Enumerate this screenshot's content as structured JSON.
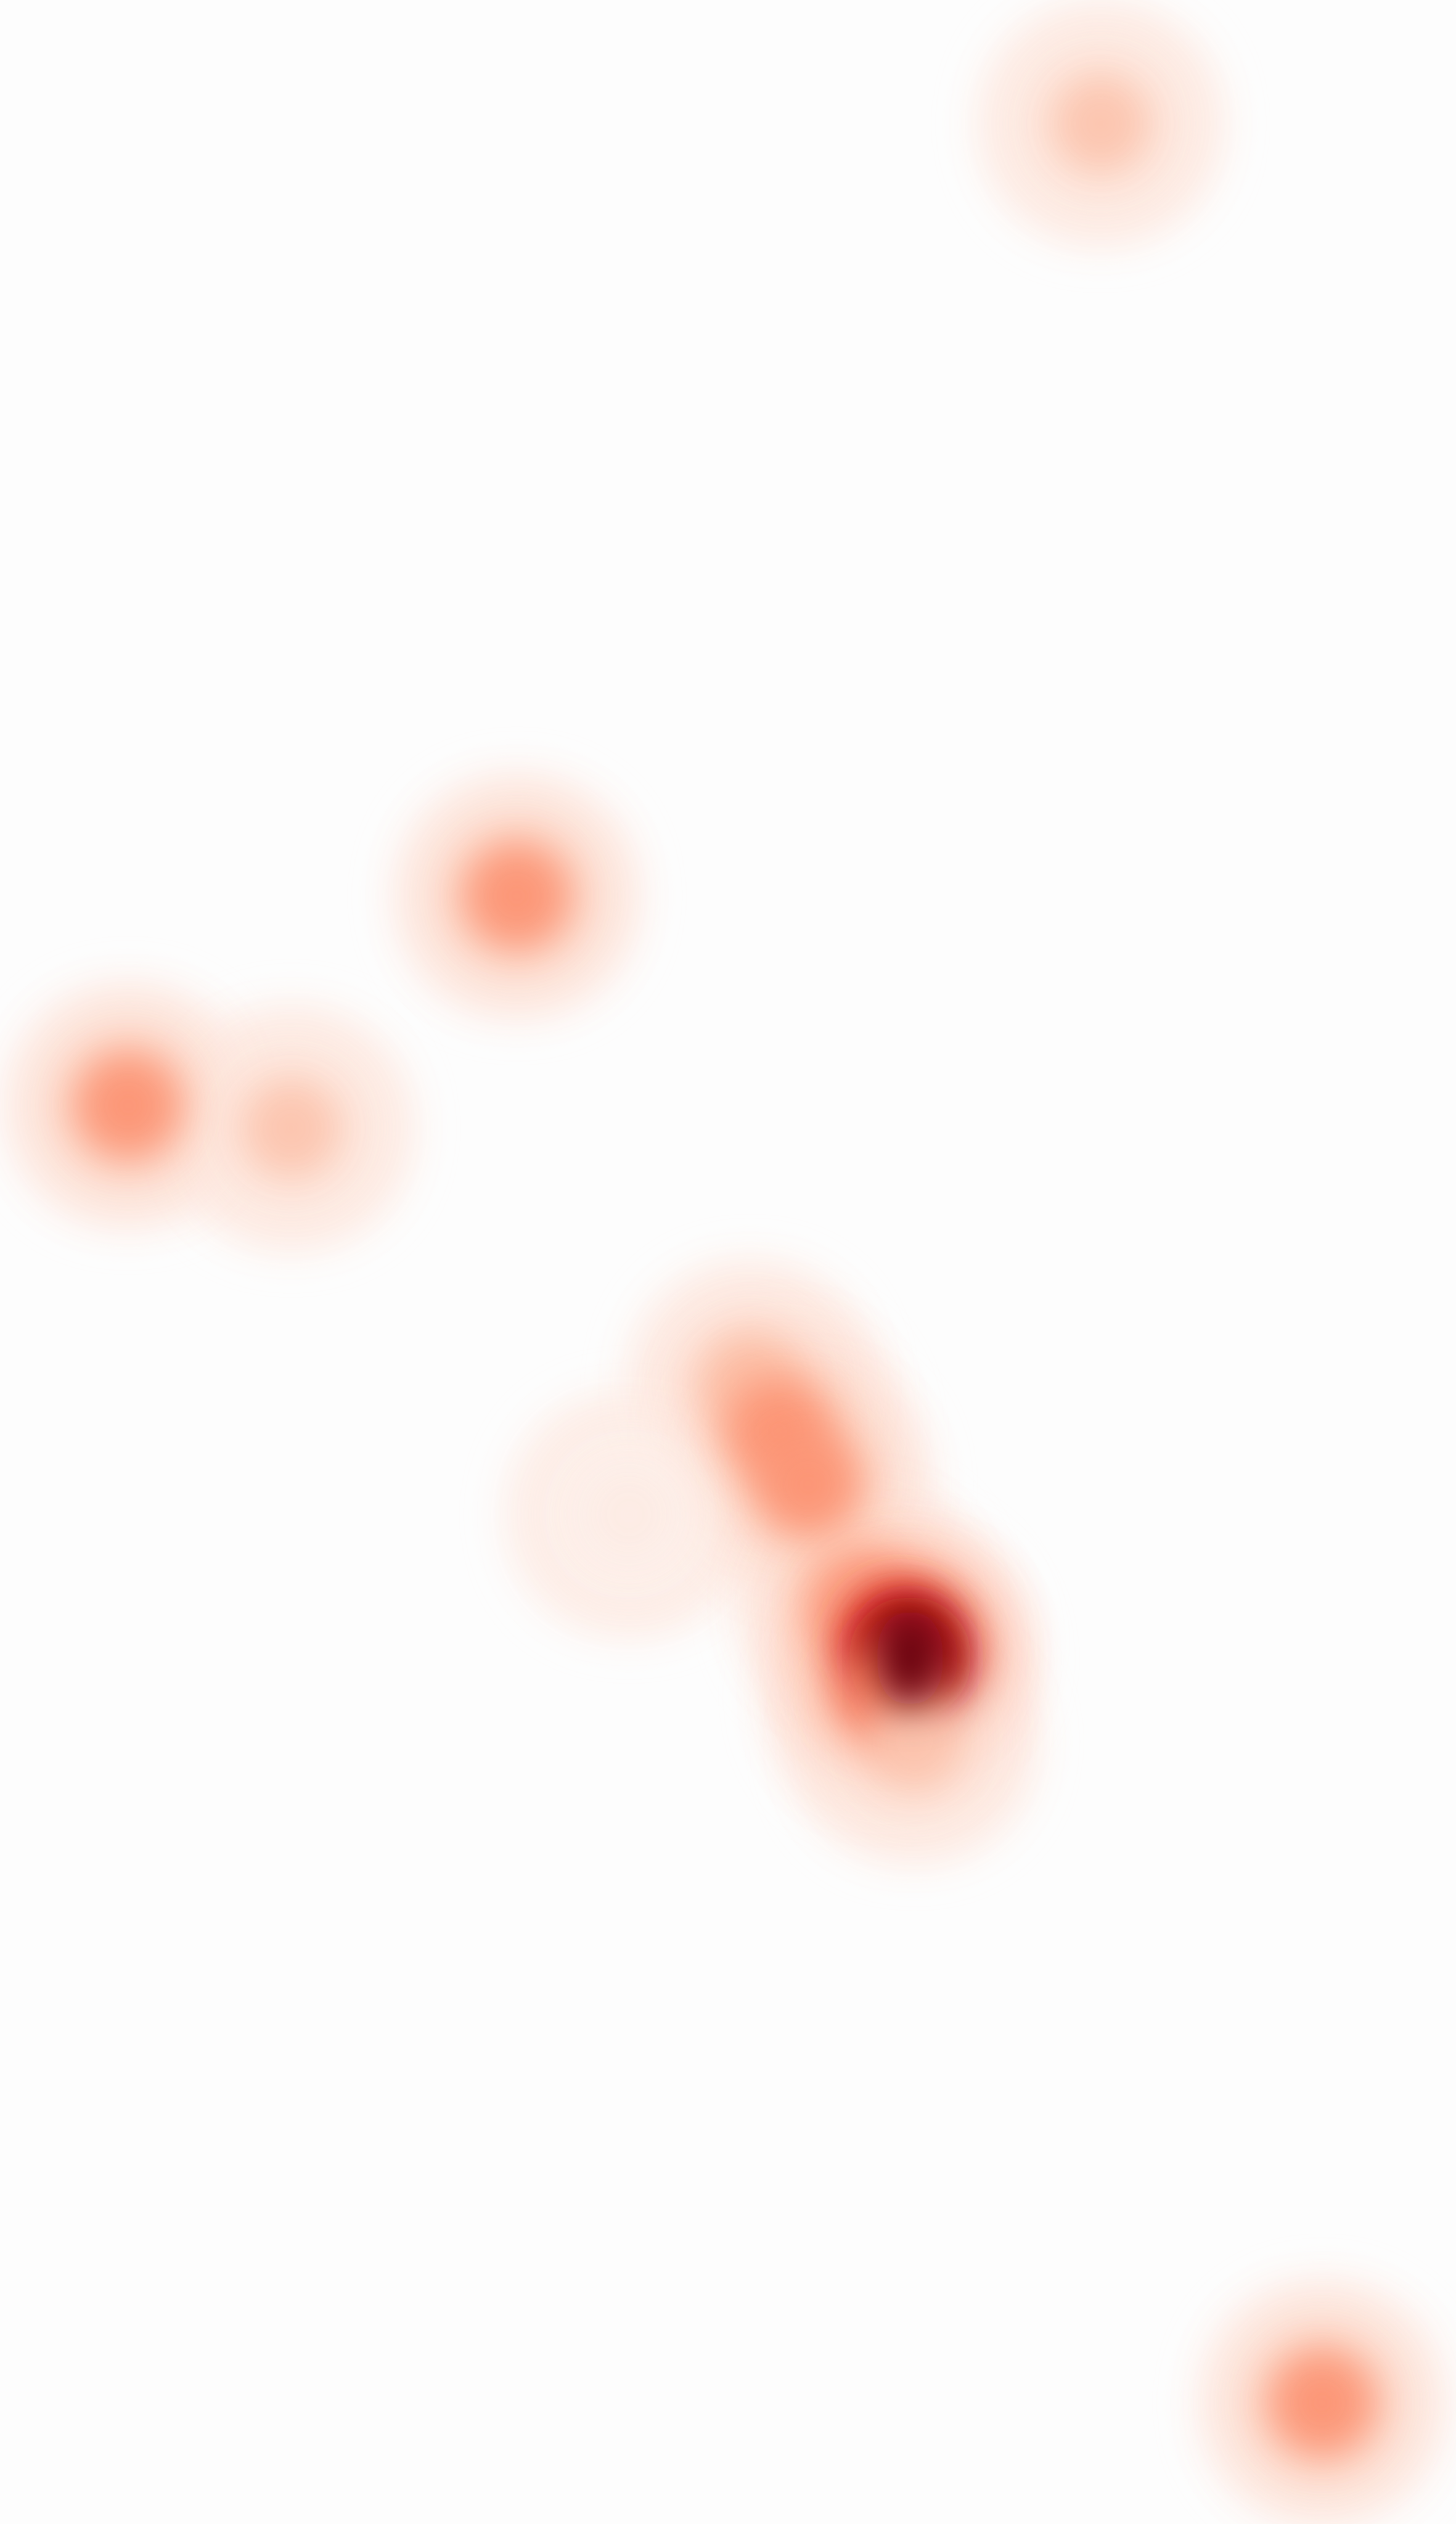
{
  "chart_data": {
    "type": "heatmap",
    "title": "",
    "xlabel": "",
    "ylabel": "",
    "grid": false,
    "legend": "none",
    "colormap": [
      "#fdfdfd",
      "#fde6dc",
      "#fcbba1",
      "#fc8a6a",
      "#ef3b2c",
      "#b30f1a",
      "#67000d"
    ],
    "points": [
      {
        "x": 0.756,
        "y": 0.049,
        "intensity": 0.35
      },
      {
        "x": 0.355,
        "y": 0.355,
        "intensity": 0.55
      },
      {
        "x": 0.088,
        "y": 0.438,
        "intensity": 0.55
      },
      {
        "x": 0.2,
        "y": 0.447,
        "intensity": 0.35
      },
      {
        "x": 0.515,
        "y": 0.548,
        "intensity": 0.38
      },
      {
        "x": 0.535,
        "y": 0.567,
        "intensity": 0.55
      },
      {
        "x": 0.555,
        "y": 0.588,
        "intensity": 0.55
      },
      {
        "x": 0.432,
        "y": 0.6,
        "intensity": 0.15
      },
      {
        "x": 0.59,
        "y": 0.635,
        "intensity": 0.5
      },
      {
        "x": 0.618,
        "y": 0.65,
        "intensity": 0.8
      },
      {
        "x": 0.625,
        "y": 0.657,
        "intensity": 1.0
      },
      {
        "x": 0.61,
        "y": 0.672,
        "intensity": 0.6
      },
      {
        "x": 0.628,
        "y": 0.69,
        "intensity": 0.35
      },
      {
        "x": 0.908,
        "y": 0.952,
        "intensity": 0.55
      }
    ]
  }
}
